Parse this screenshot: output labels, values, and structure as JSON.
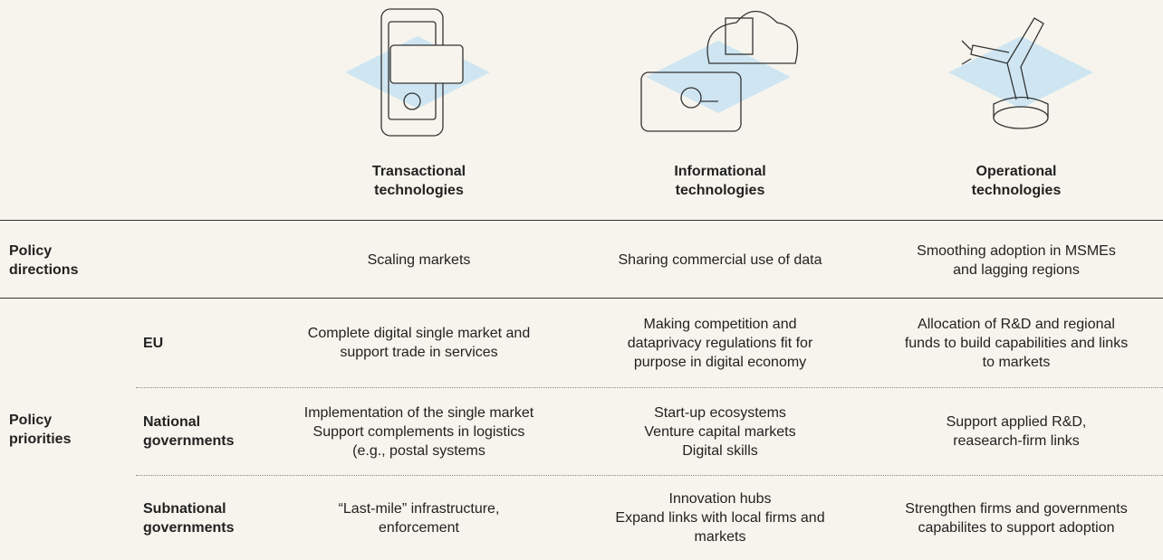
{
  "header": {
    "columns": [
      [
        "Transactional",
        "technologies"
      ],
      [
        "Informational",
        "technologies"
      ],
      [
        "Operational",
        "technologies"
      ]
    ]
  },
  "directions": {
    "label": [
      "Policy",
      "directions"
    ],
    "cells": [
      [
        "Scaling markets"
      ],
      [
        "Sharing commercial use of data"
      ],
      [
        "Smoothing adoption in MSMEs",
        "and lagging regions"
      ]
    ]
  },
  "priorities": {
    "label": [
      "Policy",
      "priorities"
    ],
    "rows": [
      {
        "label": [
          "EU"
        ],
        "cells": [
          [
            "Complete digital single market and",
            "support trade in services"
          ],
          [
            "Making competition and",
            "dataprivacy regulations fit for",
            "purpose in digital economy"
          ],
          [
            "Allocation of R&D and regional",
            "funds to build capabilities and links",
            "to markets"
          ]
        ]
      },
      {
        "label": [
          "National",
          "governments"
        ],
        "cells": [
          [
            "Implementation of the single market",
            "Support complements in logistics",
            "(e.g., postal systems"
          ],
          [
            "Start-up ecosystems",
            "Venture capital markets",
            "Digital skills"
          ],
          [
            "Support applied R&D,",
            "reasearch-firm links"
          ]
        ]
      },
      {
        "label": [
          "Subnational",
          "governments"
        ],
        "cells": [
          [
            "“Last-mile” infrastructure,",
            "enforcement"
          ],
          [
            "Innovation hubs",
            "Expand links with local firms and",
            "markets"
          ],
          [
            "Strengthen firms and governments",
            "capabilites to support adoption"
          ]
        ]
      }
    ]
  }
}
